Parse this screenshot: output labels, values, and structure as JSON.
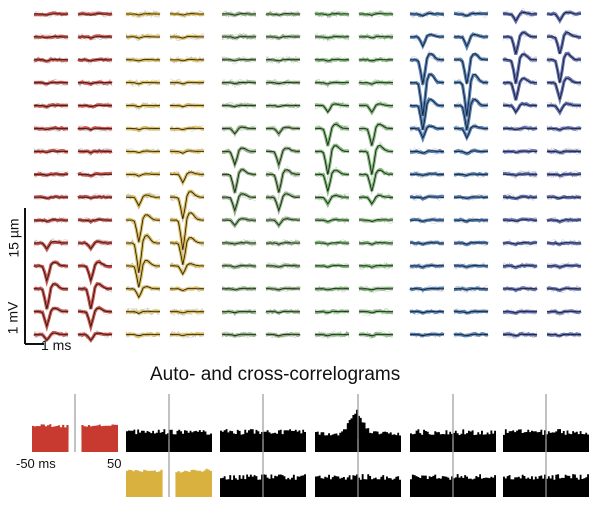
{
  "labels": {
    "vertical_scale_um": "15 µm",
    "vertical_scale_mv": "1 mV",
    "horizontal_scale_ms": "1 ms",
    "correlogram_title": "Auto- and cross-correlograms",
    "correlogram_axis_left": "-50 ms",
    "correlogram_axis_right": "50"
  },
  "colors": {
    "unit_1": "#c8392f",
    "unit_2": "#d8b13e",
    "unit_3": "#7aa66a",
    "unit_4": "#6fae64",
    "unit_5": "#3b6fb0",
    "unit_6": "#4b5db0",
    "trace_grey": "#9a9a9a",
    "mean_trace": "#1a1a1a",
    "histogram_bar": "#000000",
    "zero_line": "#999999"
  },
  "units": [
    {
      "name": "unit-1",
      "color_key": "unit_1",
      "peak_channel_left": 12,
      "peak_channel_right": 12,
      "amplitude": 0.6
    },
    {
      "name": "unit-2",
      "color_key": "unit_2",
      "peak_channel_left": 10,
      "peak_channel_right": 9,
      "amplitude": 0.9
    },
    {
      "name": "unit-3",
      "color_key": "unit_3",
      "peak_channel_left": 7,
      "peak_channel_right": 7,
      "amplitude": 0.55
    },
    {
      "name": "unit-4",
      "color_key": "unit_4",
      "peak_channel_left": 6,
      "peak_channel_right": 6,
      "amplitude": 0.7
    },
    {
      "name": "unit-5",
      "color_key": "unit_5",
      "peak_channel_left": 3,
      "peak_channel_right": 3,
      "amplitude": 1.0
    },
    {
      "name": "unit-6",
      "color_key": "unit_6",
      "peak_channel_left": 2,
      "peak_channel_right": 2,
      "amplitude": 0.7
    }
  ],
  "channels_per_column": 15,
  "correlograms": {
    "row_1": [
      {
        "name": "autocorrelogram-unit-1",
        "kind": "auto",
        "color_key": "unit_1"
      },
      {
        "name": "ccg-1-2",
        "kind": "flat",
        "color_key": "histogram_bar"
      },
      {
        "name": "ccg-1-3",
        "kind": "flat",
        "color_key": "histogram_bar"
      },
      {
        "name": "ccg-1-4",
        "kind": "peak",
        "color_key": "histogram_bar"
      },
      {
        "name": "ccg-1-5",
        "kind": "flat",
        "color_key": "histogram_bar"
      },
      {
        "name": "ccg-1-6",
        "kind": "flat",
        "color_key": "histogram_bar"
      }
    ],
    "row_2": [
      {
        "name": "autocorrelogram-unit-2",
        "kind": "auto",
        "color_key": "unit_2"
      },
      {
        "name": "ccg-2-3",
        "kind": "flat",
        "color_key": "histogram_bar"
      },
      {
        "name": "ccg-2-4",
        "kind": "flat",
        "color_key": "histogram_bar"
      },
      {
        "name": "ccg-2-5",
        "kind": "flat",
        "color_key": "histogram_bar"
      },
      {
        "name": "ccg-2-6",
        "kind": "flat",
        "color_key": "histogram_bar"
      }
    ]
  }
}
